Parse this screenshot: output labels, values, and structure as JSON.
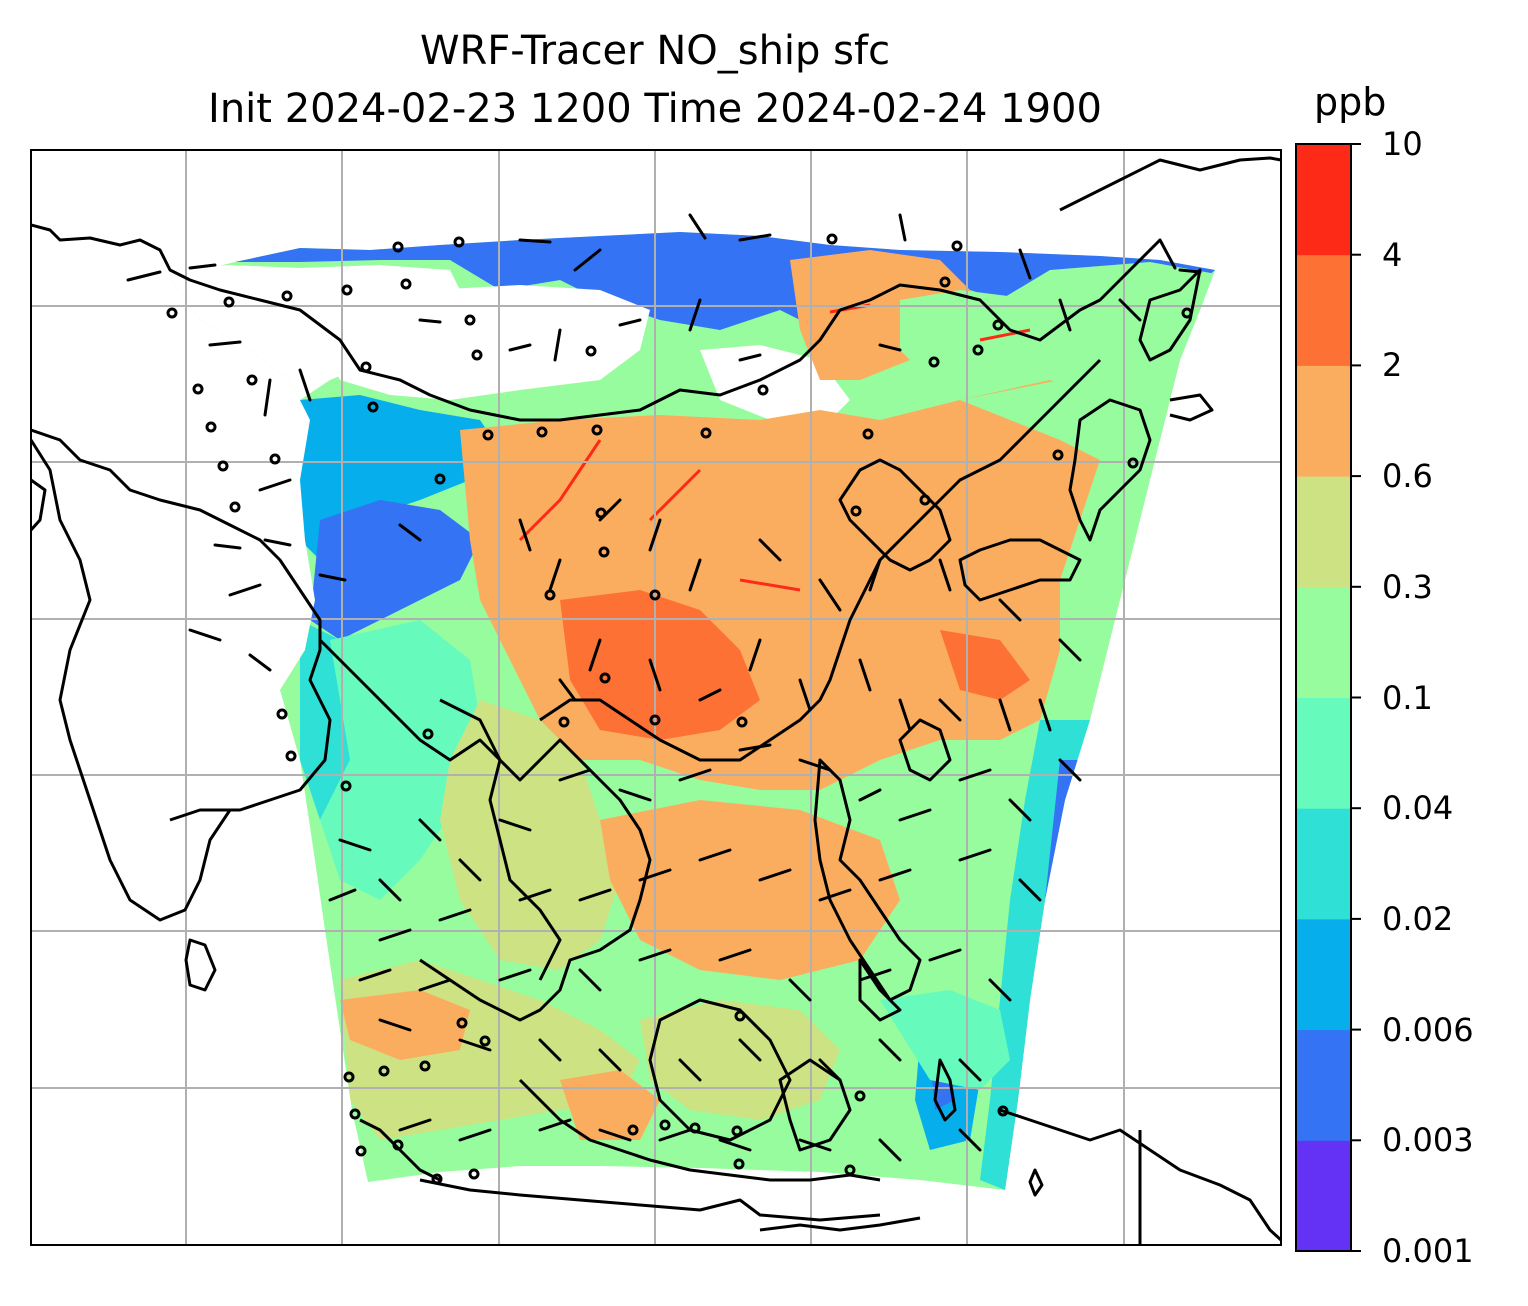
{
  "title_line1": "WRF-Tracer NO_ship sfc",
  "title_line2": "Init 2024-02-23 1200 Time 2024-02-24 1900",
  "colorbar": {
    "unit": "ppb",
    "levels": [
      "0.001",
      "0.003",
      "0.006",
      "0.02",
      "0.04",
      "0.1",
      "0.3",
      "0.6",
      "2",
      "4",
      "10"
    ],
    "colors": [
      "#6432f5",
      "#3473f4",
      "#06aeec",
      "#2ee0d6",
      "#66fbbc",
      "#96fc9e",
      "#cde283",
      "#fbad5f",
      "#fd7234",
      "#fc2a16"
    ]
  },
  "map": {
    "gridlines": true,
    "coastline_color": "#000000",
    "grid_color": "#b0b0b0",
    "background": "#ffffff"
  }
}
